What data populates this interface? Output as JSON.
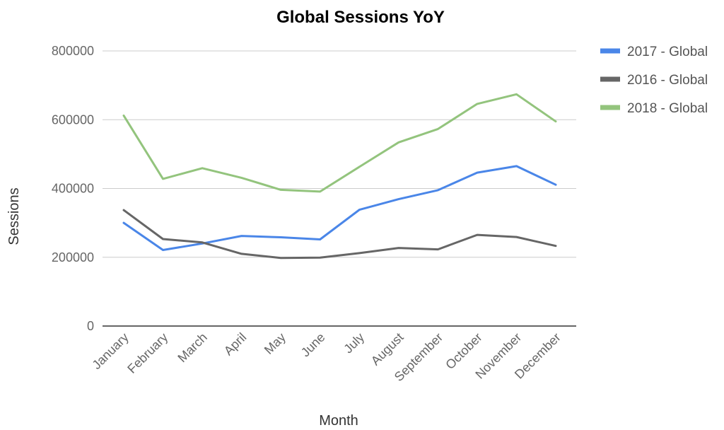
{
  "chart_data": {
    "type": "line",
    "title": "Global Sessions YoY",
    "xlabel": "Month",
    "ylabel": "Sessions",
    "ylim": [
      0,
      800000
    ],
    "yticks": [
      "0",
      "200000",
      "400000",
      "600000",
      "800000"
    ],
    "grid": true,
    "legend_position": "right",
    "categories": [
      "January",
      "February",
      "March",
      "April",
      "May",
      "June",
      "July",
      "August",
      "September",
      "October",
      "November",
      "December"
    ],
    "series": [
      {
        "name": "2017 - Global",
        "color": "#4a86e8",
        "values": [
          300000,
          221000,
          240000,
          262000,
          258000,
          252000,
          338000,
          369000,
          395000,
          446000,
          465000,
          411000
        ]
      },
      {
        "name": "2016 - Global",
        "color": "#666666",
        "values": [
          337000,
          253000,
          243000,
          210000,
          198000,
          199000,
          212000,
          227000,
          223000,
          265000,
          259000,
          233000
        ]
      },
      {
        "name": "2018 - Global",
        "color": "#93c47d",
        "values": [
          612000,
          428000,
          459000,
          431000,
          396000,
          391000,
          463000,
          534000,
          573000,
          646000,
          674000,
          595000
        ]
      }
    ]
  }
}
